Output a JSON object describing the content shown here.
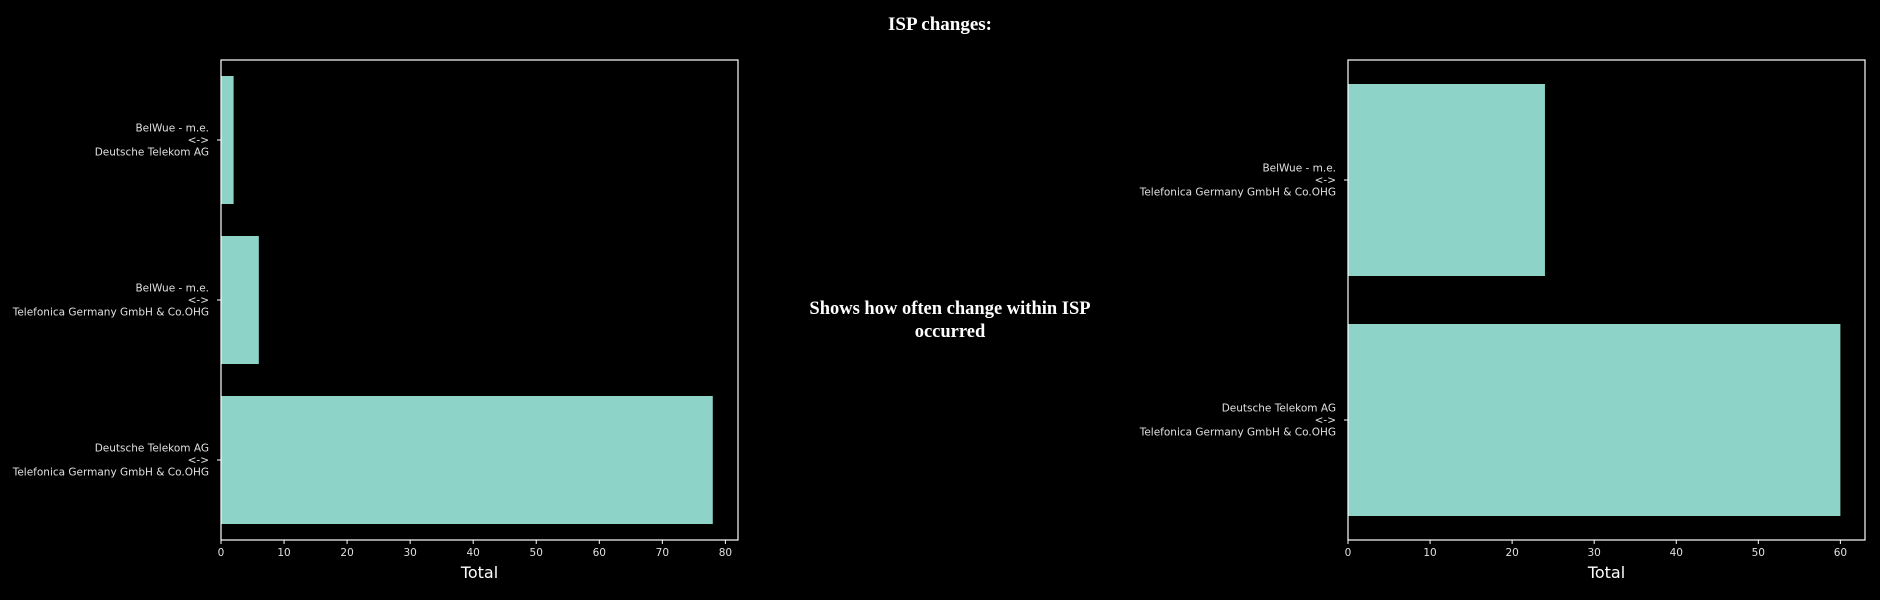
{
  "page": {
    "title": "ISP changes:",
    "description": "Shows how often change within ISP occurred"
  },
  "colors": {
    "background": "#000000",
    "bar": "#8dd3c7",
    "axis": "#ffffff",
    "text": "#ffffff",
    "tick_text": "#e0e0e0"
  },
  "chart_data": [
    {
      "type": "bar",
      "orientation": "horizontal",
      "title": "",
      "xlabel": "Total",
      "ylabel": "",
      "xlim": [
        0,
        82
      ],
      "xticks": [
        0,
        10,
        20,
        30,
        40,
        50,
        60,
        70,
        80
      ],
      "grid": false,
      "legend": "none",
      "categories": [
        [
          "BelWue - m.e.",
          "<->",
          "Deutsche Telekom AG"
        ],
        [
          "BelWue - m.e.",
          "<->",
          "Telefonica Germany GmbH & Co.OHG"
        ],
        [
          "Deutsche Telekom AG",
          "<->",
          "Telefonica Germany GmbH & Co.OHG"
        ]
      ],
      "values": [
        2,
        6,
        78
      ]
    },
    {
      "type": "bar",
      "orientation": "horizontal",
      "title": "",
      "xlabel": "Total",
      "ylabel": "",
      "xlim": [
        0,
        63
      ],
      "xticks": [
        0,
        10,
        20,
        30,
        40,
        50,
        60
      ],
      "grid": false,
      "legend": "none",
      "categories": [
        [
          "BelWue - m.e.",
          "<->",
          "Telefonica Germany GmbH & Co.OHG"
        ],
        [
          "Deutsche Telekom AG",
          "<->",
          "Telefonica Germany GmbH & Co.OHG"
        ]
      ],
      "values": [
        24,
        60
      ]
    }
  ]
}
